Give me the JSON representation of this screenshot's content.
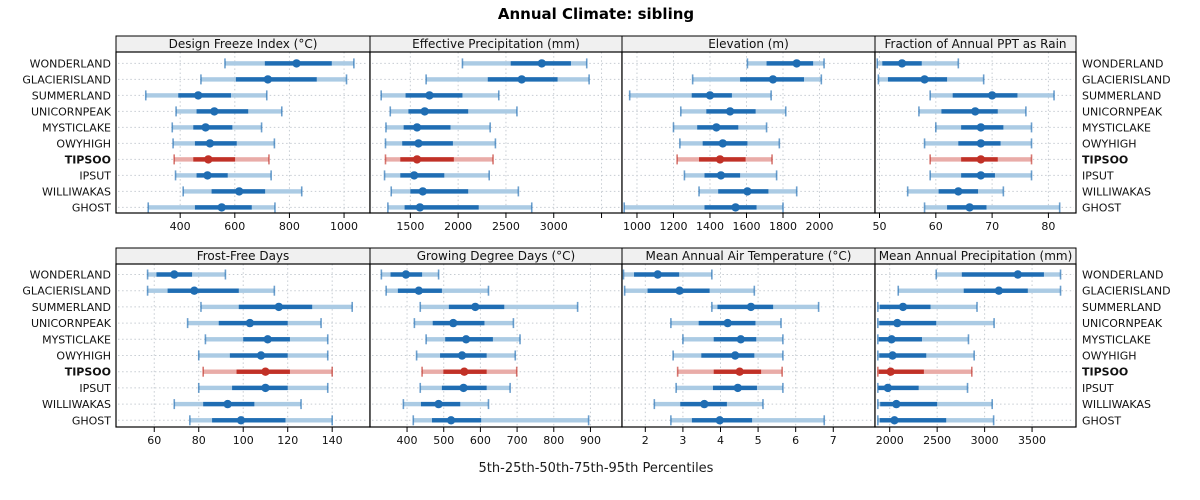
{
  "chart_data": {
    "type": "scatter",
    "style": "trellis of horizontal percentile interval plots: pale band 5th-95th with end caps, dark band 25th-75th, dot at median; TIPSOO row highlighted red",
    "title": "Annual Climate: sibling",
    "caption": "5th-25th-50th-75th-95th Percentiles",
    "sites": [
      "WONDERLAND",
      "GLACIERISLAND",
      "SUMMERLAND",
      "UNICORNPEAK",
      "MYSTICLAKE",
      "OWYHIGH",
      "TIPSOO",
      "IPSUT",
      "WILLIWAKAS",
      "GHOST"
    ],
    "highlighted_site": "TIPSOO",
    "colors": {
      "blue_dark": "#1f6db3",
      "blue_pale": "#abcbe4",
      "red_dark": "#c13127",
      "red_pale": "#e9aca8",
      "gridline": "#c6ccd2",
      "header_bg": "#f0f0f0",
      "panel_border": "#000000"
    },
    "legend_position": "none",
    "grid": "dotted",
    "panels": [
      {
        "label": "Design Freeze Index (°C)",
        "xlim": [
          165,
          1095
        ],
        "ticks": [
          {
            "v": 400,
            "label": "400"
          },
          {
            "v": 600,
            "label": "600"
          },
          {
            "v": 800,
            "label": "800"
          },
          {
            "v": 1000,
            "label": "1000"
          }
        ],
        "values": [
          [
            564,
            710,
            826,
            955,
            1036
          ],
          [
            476,
            604,
            721,
            900,
            1009
          ],
          [
            274,
            393,
            466,
            586,
            717
          ],
          [
            385,
            460,
            525,
            649,
            772
          ],
          [
            371,
            448,
            493,
            591,
            698
          ],
          [
            374,
            454,
            509,
            607,
            745
          ],
          [
            378,
            448,
            503,
            601,
            725
          ],
          [
            383,
            460,
            500,
            574,
            733
          ],
          [
            411,
            515,
            616,
            711,
            845
          ],
          [
            283,
            454,
            552,
            662,
            747
          ]
        ]
      },
      {
        "label": "Effective Precipitation (mm)",
        "xlim": [
          1078,
          3714
        ],
        "ticks": [
          {
            "v": 1500,
            "label": "1500"
          },
          {
            "v": 2000,
            "label": "2000"
          },
          {
            "v": 2500,
            "label": "2500"
          },
          {
            "v": 3000,
            "label": "3000"
          },
          {
            "v": 3500,
            "label": ""
          }
        ],
        "values": [
          [
            2045,
            2550,
            2875,
            3180,
            3345
          ],
          [
            1665,
            2310,
            2665,
            3040,
            3370
          ],
          [
            1195,
            1450,
            1700,
            2045,
            2425
          ],
          [
            1290,
            1480,
            1650,
            2105,
            2615
          ],
          [
            1245,
            1430,
            1570,
            1920,
            2335
          ],
          [
            1240,
            1415,
            1585,
            1945,
            2390
          ],
          [
            1240,
            1395,
            1570,
            1955,
            2365
          ],
          [
            1230,
            1395,
            1540,
            1855,
            2325
          ],
          [
            1300,
            1500,
            1630,
            2105,
            2630
          ],
          [
            1265,
            1440,
            1600,
            2215,
            2770
          ]
        ]
      },
      {
        "label": "Elevation (m)",
        "xlim": [
          918,
          2304
        ],
        "ticks": [
          {
            "v": 1000,
            "label": "1000"
          },
          {
            "v": 1200,
            "label": "1200"
          },
          {
            "v": 1400,
            "label": "1400"
          },
          {
            "v": 1600,
            "label": "1600"
          },
          {
            "v": 1800,
            "label": "1800"
          },
          {
            "v": 2000,
            "label": "2000"
          }
        ],
        "values": [
          [
            1605,
            1710,
            1875,
            1965,
            2025
          ],
          [
            1305,
            1565,
            1745,
            1915,
            2010
          ],
          [
            960,
            1300,
            1400,
            1520,
            1735
          ],
          [
            1240,
            1380,
            1510,
            1650,
            1815
          ],
          [
            1200,
            1330,
            1435,
            1555,
            1710
          ],
          [
            1235,
            1360,
            1470,
            1605,
            1780
          ],
          [
            1220,
            1340,
            1455,
            1595,
            1740
          ],
          [
            1260,
            1370,
            1460,
            1565,
            1765
          ],
          [
            1340,
            1445,
            1605,
            1720,
            1875
          ],
          [
            930,
            1370,
            1540,
            1655,
            1800
          ]
        ]
      },
      {
        "label": "Fraction of Annual PPT as Rain",
        "xlim": [
          49.2,
          84.9
        ],
        "ticks": [
          {
            "v": 50,
            "label": "50"
          },
          {
            "v": 60,
            "label": "60"
          },
          {
            "v": 70,
            "label": "70"
          },
          {
            "v": 80,
            "label": "80"
          }
        ],
        "values": [
          [
            49.6,
            50.5,
            54,
            57.5,
            64
          ],
          [
            49.8,
            51.5,
            58,
            62,
            68.5
          ],
          [
            59,
            63,
            70,
            74.5,
            81
          ],
          [
            57,
            61,
            67,
            71,
            76
          ],
          [
            60,
            64.5,
            68,
            72,
            77
          ],
          [
            58,
            64,
            68,
            71.5,
            77
          ],
          [
            59,
            64.5,
            68,
            71,
            77
          ],
          [
            59,
            64.5,
            68,
            70.5,
            77
          ],
          [
            55,
            60.5,
            64,
            67.5,
            72
          ],
          [
            58,
            62,
            66,
            69,
            82
          ]
        ]
      },
      {
        "label": "Frost-Free Days",
        "xlim": [
          42.8,
          157
        ],
        "ticks": [
          {
            "v": 60,
            "label": "60"
          },
          {
            "v": 80,
            "label": "80"
          },
          {
            "v": 100,
            "label": "100"
          },
          {
            "v": 120,
            "label": "120"
          },
          {
            "v": 140,
            "label": "140"
          }
        ],
        "values": [
          [
            57,
            61,
            69,
            77,
            92
          ],
          [
            57,
            66,
            78,
            98,
            114
          ],
          [
            81,
            98,
            116,
            131,
            149
          ],
          [
            75,
            89,
            103,
            120,
            135
          ],
          [
            83,
            100,
            111,
            121,
            138
          ],
          [
            80,
            94,
            108,
            120,
            138
          ],
          [
            82,
            97,
            110,
            121,
            140
          ],
          [
            80,
            95,
            110,
            120,
            138
          ],
          [
            69,
            82,
            93,
            105,
            126
          ],
          [
            76,
            86,
            99,
            119,
            140
          ]
        ]
      },
      {
        "label": "Growing Degree Days (°C)",
        "xlim": [
          299,
          986
        ],
        "ticks": [
          {
            "v": 400,
            "label": "400"
          },
          {
            "v": 500,
            "label": "500"
          },
          {
            "v": 600,
            "label": "600"
          },
          {
            "v": 700,
            "label": "700"
          },
          {
            "v": 800,
            "label": "800"
          },
          {
            "v": 900,
            "label": "900"
          }
        ],
        "values": [
          [
            330,
            355,
            397,
            441,
            486
          ],
          [
            343,
            375,
            432,
            495,
            622
          ],
          [
            436,
            514,
            586,
            665,
            865
          ],
          [
            420,
            470,
            526,
            611,
            690
          ],
          [
            452,
            504,
            561,
            634,
            708
          ],
          [
            426,
            490,
            550,
            617,
            695
          ],
          [
            441,
            499,
            556,
            617,
            699
          ],
          [
            436,
            495,
            554,
            617,
            681
          ],
          [
            390,
            438,
            486,
            545,
            622
          ],
          [
            417,
            468,
            520,
            602,
            895
          ]
        ]
      },
      {
        "label": "Mean Annual Air Temperature (°C)",
        "xlim": [
          1.38,
          8.11
        ],
        "ticks": [
          {
            "v": 2,
            "label": "2"
          },
          {
            "v": 3,
            "label": "3"
          },
          {
            "v": 4,
            "label": "4"
          },
          {
            "v": 5,
            "label": "5"
          },
          {
            "v": 6,
            "label": "6"
          },
          {
            "v": 7,
            "label": "7"
          }
        ],
        "values": [
          [
            1.42,
            1.7,
            2.33,
            2.9,
            3.77
          ],
          [
            1.45,
            2.06,
            2.91,
            3.71,
            4.9
          ],
          [
            3.77,
            3.92,
            4.81,
            5.4,
            6.61
          ],
          [
            2.68,
            3.42,
            4.19,
            4.93,
            5.61
          ],
          [
            3.0,
            3.82,
            4.54,
            4.95,
            5.66
          ],
          [
            2.74,
            3.49,
            4.39,
            4.9,
            5.66
          ],
          [
            2.86,
            3.82,
            4.51,
            5.08,
            5.64
          ],
          [
            2.82,
            3.8,
            4.46,
            4.97,
            5.66
          ],
          [
            2.24,
            2.93,
            3.57,
            4.17,
            5.13
          ],
          [
            2.68,
            3.24,
            3.98,
            4.84,
            6.76
          ]
        ]
      },
      {
        "label": "Mean Annual Precipitation (mm)",
        "xlim": [
          1845,
          3963
        ],
        "ticks": [
          {
            "v": 2000,
            "label": "2000"
          },
          {
            "v": 2500,
            "label": "2500"
          },
          {
            "v": 3000,
            "label": "3000"
          },
          {
            "v": 3500,
            "label": "3500"
          }
        ],
        "values": [
          [
            2490,
            2760,
            3350,
            3625,
            3800
          ],
          [
            2090,
            2780,
            3150,
            3455,
            3800
          ],
          [
            1875,
            1895,
            2140,
            2430,
            2920
          ],
          [
            1875,
            1890,
            2080,
            2490,
            3100
          ],
          [
            1875,
            1885,
            2020,
            2340,
            2830
          ],
          [
            1875,
            1890,
            2030,
            2385,
            2890
          ],
          [
            1875,
            1885,
            2010,
            2360,
            2865
          ],
          [
            1875,
            1880,
            1980,
            2305,
            2820
          ],
          [
            1875,
            1900,
            2070,
            2500,
            3080
          ],
          [
            1875,
            1895,
            2050,
            2595,
            3095
          ]
        ]
      }
    ]
  }
}
